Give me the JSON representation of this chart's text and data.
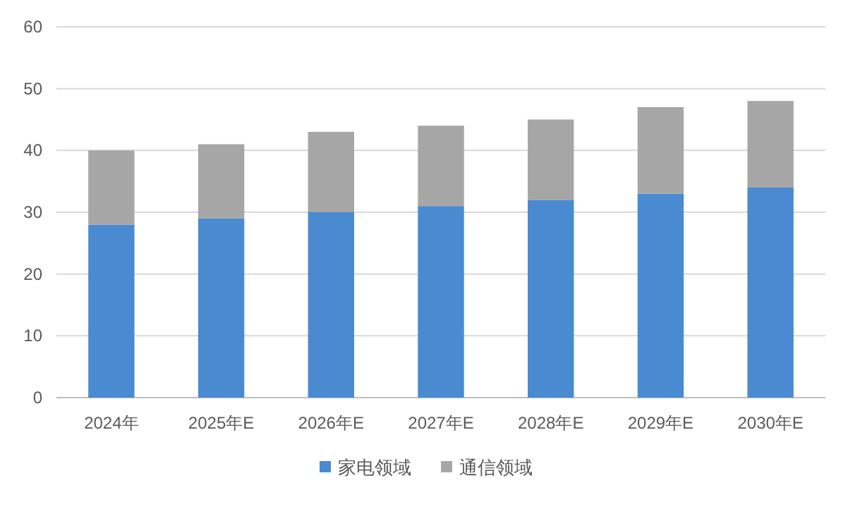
{
  "chart_data": {
    "type": "bar",
    "stacked": true,
    "categories": [
      "2024年",
      "2025年E",
      "2026年E",
      "2027年E",
      "2028年E",
      "2029年E",
      "2030年E"
    ],
    "series": [
      {
        "name": "家电领域",
        "color": "#4a8ad0",
        "values": [
          28,
          29,
          30,
          31,
          32,
          33,
          34
        ]
      },
      {
        "name": "通信领域",
        "color": "#a6a6a6",
        "values": [
          12,
          12,
          13,
          13,
          13,
          14,
          14
        ]
      }
    ],
    "ylim": [
      0,
      60
    ],
    "yticks": [
      0,
      10,
      20,
      30,
      40,
      50,
      60
    ],
    "grid": "y",
    "legend": "bottom"
  }
}
